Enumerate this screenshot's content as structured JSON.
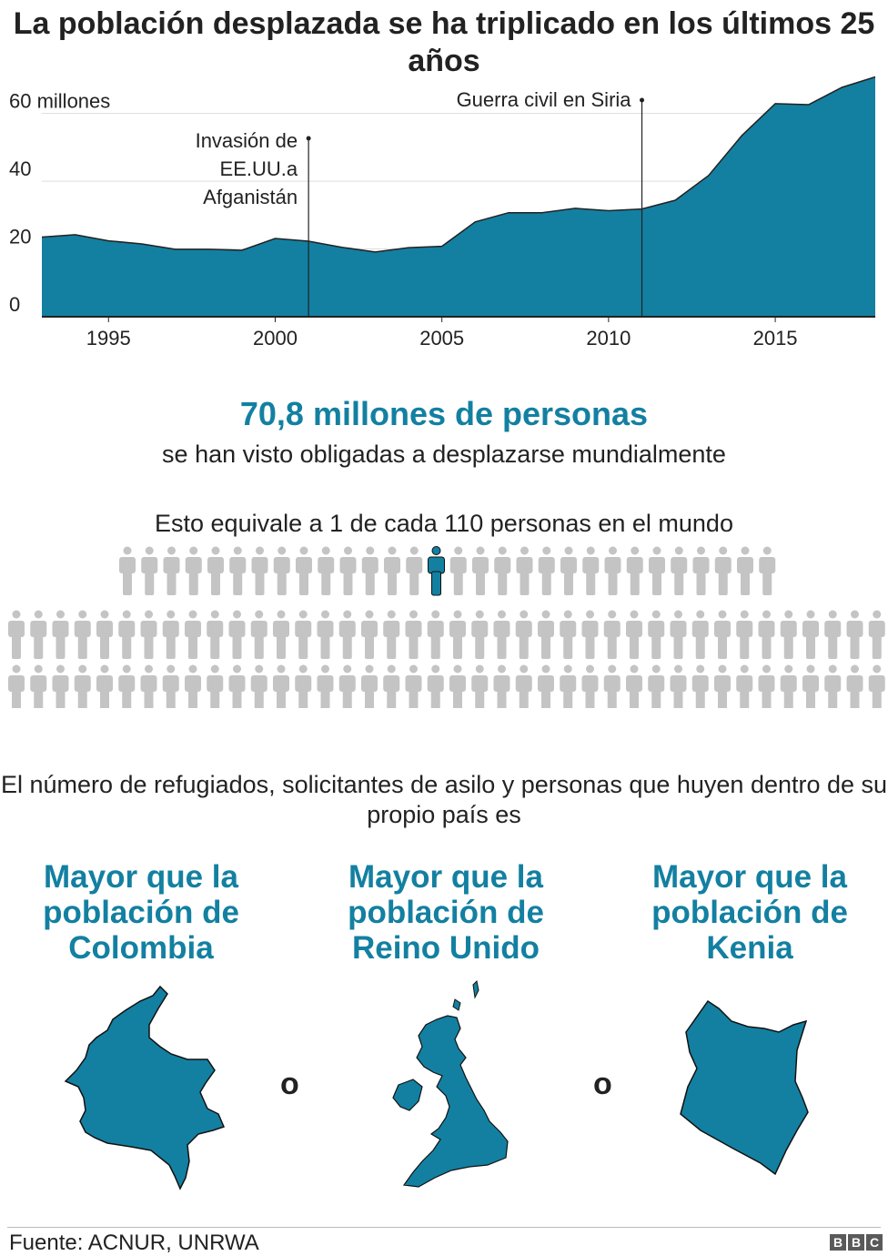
{
  "title": "La población desplazada se ha triplicado en los últimos 25 años",
  "chart_data": {
    "type": "area",
    "x": [
      1993,
      1994,
      1995,
      1996,
      1997,
      1998,
      1999,
      2000,
      2001,
      2002,
      2003,
      2004,
      2005,
      2006,
      2007,
      2008,
      2009,
      2010,
      2011,
      2012,
      2013,
      2014,
      2015,
      2016,
      2017,
      2018
    ],
    "values": [
      23.5,
      24.2,
      22.4,
      21.5,
      19.9,
      19.9,
      19.6,
      23.1,
      22.3,
      20.5,
      19.1,
      20.4,
      20.8,
      28.0,
      30.7,
      30.7,
      32.0,
      31.3,
      31.8,
      34.4,
      41.7,
      53.5,
      62.9,
      62.6,
      67.7,
      70.8
    ],
    "ylim": [
      0,
      72
    ],
    "xlim": [
      1993,
      2018
    ],
    "yticks": [
      {
        "value": 0,
        "label": "0"
      },
      {
        "value": 20,
        "label": "20"
      },
      {
        "value": 40,
        "label": "40"
      },
      {
        "value": 60,
        "label": "60 millones"
      }
    ],
    "xticks": [
      {
        "value": 1995,
        "label": "1995"
      },
      {
        "value": 2000,
        "label": "2000"
      },
      {
        "value": 2005,
        "label": "2005"
      },
      {
        "value": 2010,
        "label": "2010"
      },
      {
        "value": 2015,
        "label": "2015"
      }
    ],
    "annotations": [
      {
        "x": 2001,
        "lines": [
          "Invasión de",
          "EE.UU.a",
          "Afganistán"
        ]
      },
      {
        "x": 2011,
        "lines": [
          "Guerra civil en Siria"
        ]
      }
    ],
    "grid": true,
    "fill_color": "#1380A1",
    "grid_color": "#dddddd"
  },
  "headline": "70,8 millones de personas",
  "subline": "se han visto obligadas a desplazarse mundialmente",
  "equivalence": "Esto equivale a 1 de cada 110 personas en el mundo",
  "people": {
    "total": 110,
    "highlighted": 1,
    "highlight_color": "#1380A1",
    "base_color": "#c4c4c4"
  },
  "comparison_intro": "El número de refugiados, solicitantes de asilo y personas que huyen dentro de su propio país es",
  "countries": [
    {
      "title": "Mayor que la población de Colombia",
      "icon": "colombia-map-icon"
    },
    {
      "title": "Mayor que la población de Reino Unido",
      "icon": "uk-map-icon"
    },
    {
      "title": "Mayor que la población de Kenia",
      "icon": "kenya-map-icon"
    }
  ],
  "or_word": "o",
  "map_color": "#1380A1",
  "source": "Fuente: ACNUR, UNRWA",
  "logo_letters": [
    "B",
    "B",
    "C"
  ]
}
